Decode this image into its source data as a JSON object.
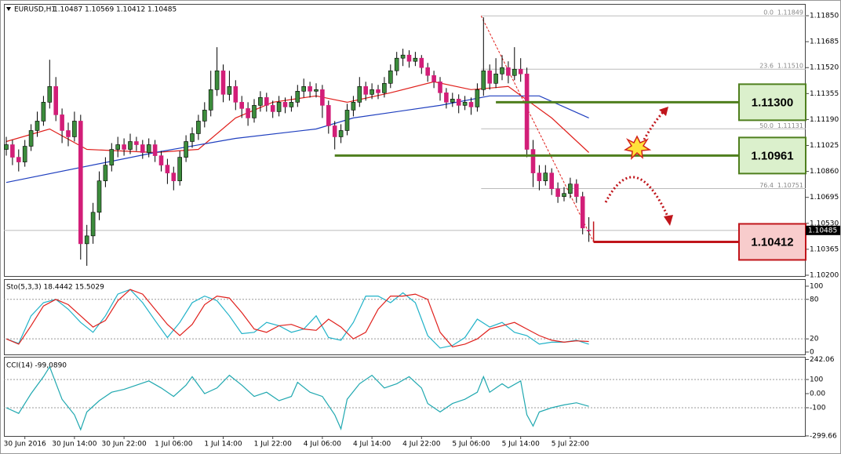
{
  "chart_data": [
    {
      "type": "candlestick",
      "title": "EURUSD,H1",
      "header_ohlc": [
        1.10487,
        1.10569,
        1.10412,
        1.10485
      ],
      "up_color": "#3c8c3c",
      "down_color": "#d21e78",
      "ylim": [
        1.10195,
        1.11925
      ],
      "yticks": [
        {
          "value": 1.1185,
          "label": "1.11850"
        },
        1.11685,
        {
          "value": 1.1152,
          "label": "1.11520"
        },
        1.11355,
        {
          "value": 1.1119,
          "label": "1.11190"
        },
        1.11025,
        {
          "value": 1.1086,
          "label": "1.10860"
        },
        1.10695,
        {
          "value": 1.1053,
          "label": "1.10530"
        },
        1.10365,
        {
          "value": 1.102,
          "label": "1.10200"
        }
      ],
      "current_price": 1.10485,
      "categories": [
        null,
        null,
        null,
        "30 Jun 2016",
        null,
        null,
        null,
        null,
        null,
        null,
        null,
        "30 Jun 14:00",
        null,
        null,
        null,
        null,
        null,
        null,
        null,
        "30 Jun 22:00",
        null,
        null,
        null,
        null,
        null,
        null,
        null,
        "1 Jul 06:00",
        null,
        null,
        null,
        null,
        null,
        null,
        null,
        "1 Jul 14:00",
        null,
        null,
        null,
        null,
        null,
        null,
        null,
        "1 Jul 22:00",
        null,
        null,
        null,
        null,
        null,
        null,
        null,
        "4 Jul 06:00",
        null,
        null,
        null,
        null,
        null,
        null,
        null,
        "4 Jul 14:00",
        null,
        null,
        null,
        null,
        null,
        null,
        null,
        "4 Jul 22:00",
        null,
        null,
        null,
        null,
        null,
        null,
        null,
        "5 Jul 06:00",
        null,
        null,
        null,
        null,
        null,
        null,
        null,
        "5 Jul 14:00",
        null,
        null,
        null,
        null,
        null,
        null,
        null,
        "5 Jul 22:00",
        null,
        null,
        null
      ],
      "ohlc": [
        [
          1.11,
          1.1108,
          1.1096,
          1.1103
        ],
        [
          1.1103,
          1.1106,
          1.109,
          1.1095
        ],
        [
          1.1095,
          1.11,
          1.1086,
          1.1092
        ],
        [
          1.1092,
          1.1106,
          1.1089,
          1.1102
        ],
        [
          1.1102,
          1.1116,
          1.1099,
          1.1112
        ],
        [
          1.1112,
          1.1124,
          1.1108,
          1.1118
        ],
        [
          1.1118,
          1.1134,
          1.1115,
          1.113
        ],
        [
          1.113,
          1.1157,
          1.1126,
          1.114
        ],
        [
          1.114,
          1.1146,
          1.1118,
          1.1122
        ],
        [
          1.1122,
          1.1126,
          1.1104,
          1.1112
        ],
        [
          1.1112,
          1.1117,
          1.1102,
          1.1108
        ],
        [
          1.1108,
          1.1124,
          1.1105,
          1.1118
        ],
        [
          1.1118,
          1.1122,
          1.103,
          1.104
        ],
        [
          1.104,
          1.1052,
          1.1026,
          1.1045
        ],
        [
          1.1045,
          1.1066,
          1.104,
          1.106
        ],
        [
          1.106,
          1.1086,
          1.1055,
          1.108
        ],
        [
          1.108,
          1.1095,
          1.1076,
          1.109
        ],
        [
          1.109,
          1.1104,
          1.1086,
          1.11
        ],
        [
          1.11,
          1.1108,
          1.1095,
          1.1103
        ],
        [
          1.1103,
          1.1107,
          1.1096,
          1.11
        ],
        [
          1.11,
          1.111,
          1.1097,
          1.1105
        ],
        [
          1.1105,
          1.1108,
          1.1099,
          1.1103
        ],
        [
          1.1103,
          1.1106,
          1.1094,
          1.1098
        ],
        [
          1.1098,
          1.1107,
          1.1095,
          1.1103
        ],
        [
          1.1103,
          1.1106,
          1.1092,
          1.1096
        ],
        [
          1.1096,
          1.1099,
          1.1086,
          1.109
        ],
        [
          1.109,
          1.1094,
          1.1078,
          1.1085
        ],
        [
          1.1085,
          1.1089,
          1.1074,
          1.108
        ],
        [
          1.108,
          1.1099,
          1.1077,
          1.1095
        ],
        [
          1.1095,
          1.1109,
          1.1092,
          1.1105
        ],
        [
          1.1105,
          1.1114,
          1.1101,
          1.111
        ],
        [
          1.111,
          1.1122,
          1.1106,
          1.1118
        ],
        [
          1.1118,
          1.113,
          1.1114,
          1.1125
        ],
        [
          1.1125,
          1.115,
          1.1121,
          1.1138
        ],
        [
          1.1138,
          1.1165,
          1.1134,
          1.115
        ],
        [
          1.115,
          1.1154,
          1.113,
          1.1135
        ],
        [
          1.1135,
          1.115,
          1.1131,
          1.114
        ],
        [
          1.114,
          1.1144,
          1.1125,
          1.113
        ],
        [
          1.113,
          1.1134,
          1.112,
          1.1126
        ],
        [
          1.1126,
          1.113,
          1.1115,
          1.112
        ],
        [
          1.112,
          1.1132,
          1.1117,
          1.1128
        ],
        [
          1.1128,
          1.1137,
          1.1124,
          1.1133
        ],
        [
          1.1133,
          1.1136,
          1.1124,
          1.1128
        ],
        [
          1.1128,
          1.1131,
          1.112,
          1.1124
        ],
        [
          1.1124,
          1.1134,
          1.1121,
          1.113
        ],
        [
          1.113,
          1.1133,
          1.1123,
          1.1127
        ],
        [
          1.1127,
          1.1134,
          1.1124,
          1.113
        ],
        [
          1.113,
          1.1141,
          1.1127,
          1.1137
        ],
        [
          1.1137,
          1.1145,
          1.1133,
          1.114
        ],
        [
          1.114,
          1.1143,
          1.1133,
          1.1137
        ],
        [
          1.1137,
          1.1142,
          1.1133,
          1.1138
        ],
        [
          1.1138,
          1.1141,
          1.112,
          1.1128
        ],
        [
          1.1128,
          1.1131,
          1.111,
          1.1115
        ],
        [
          1.1115,
          1.1118,
          1.11,
          1.1108
        ],
        [
          1.1108,
          1.1116,
          1.1104,
          1.1112
        ],
        [
          1.1112,
          1.1129,
          1.1109,
          1.1125
        ],
        [
          1.1125,
          1.1134,
          1.1121,
          1.113
        ],
        [
          1.113,
          1.1146,
          1.1127,
          1.114
        ],
        [
          1.114,
          1.1143,
          1.1131,
          1.1135
        ],
        [
          1.1135,
          1.1142,
          1.1132,
          1.1138
        ],
        [
          1.1138,
          1.1141,
          1.1132,
          1.1136
        ],
        [
          1.1136,
          1.1146,
          1.1133,
          1.1142
        ],
        [
          1.1142,
          1.1154,
          1.1139,
          1.115
        ],
        [
          1.115,
          1.1162,
          1.1147,
          1.1158
        ],
        [
          1.1158,
          1.1164,
          1.1153,
          1.116
        ],
        [
          1.116,
          1.1163,
          1.1152,
          1.1156
        ],
        [
          1.1156,
          1.1162,
          1.1153,
          1.1158
        ],
        [
          1.1158,
          1.116,
          1.1148,
          1.1152
        ],
        [
          1.1152,
          1.1155,
          1.1143,
          1.1147
        ],
        [
          1.1147,
          1.115,
          1.1139,
          1.1143
        ],
        [
          1.1143,
          1.1146,
          1.1131,
          1.1136
        ],
        [
          1.1136,
          1.1139,
          1.1126,
          1.113
        ],
        [
          1.113,
          1.1136,
          1.1127,
          1.1132
        ],
        [
          1.1132,
          1.1135,
          1.1123,
          1.1128
        ],
        [
          1.1128,
          1.1134,
          1.1125,
          1.113
        ],
        [
          1.113,
          1.1133,
          1.1122,
          1.1127
        ],
        [
          1.1127,
          1.1142,
          1.1124,
          1.1138
        ],
        [
          1.1138,
          1.1184,
          1.1134,
          1.115
        ],
        [
          1.115,
          1.1154,
          1.1138,
          1.1142
        ],
        [
          1.1142,
          1.1158,
          1.1139,
          1.1148
        ],
        [
          1.1148,
          1.116,
          1.1144,
          1.1152
        ],
        [
          1.1152,
          1.1156,
          1.1142,
          1.1147
        ],
        [
          1.1147,
          1.1165,
          1.1144,
          1.1151
        ],
        [
          1.1151,
          1.1158,
          1.1143,
          1.1148
        ],
        [
          1.1148,
          1.1152,
          1.1095,
          1.11
        ],
        [
          1.11,
          1.1106,
          1.1076,
          1.1085
        ],
        [
          1.1085,
          1.109,
          1.1074,
          1.108
        ],
        [
          1.108,
          1.109,
          1.1077,
          1.1085
        ],
        [
          1.1085,
          1.1088,
          1.1071,
          1.1075
        ],
        [
          1.1075,
          1.1079,
          1.1066,
          1.107
        ],
        [
          1.107,
          1.1076,
          1.1067,
          1.1072
        ],
        [
          1.1072,
          1.1082,
          1.1069,
          1.1078
        ],
        [
          1.1078,
          1.1081,
          1.1066,
          1.107
        ],
        [
          1.107,
          1.1073,
          1.1046,
          1.105
        ],
        [
          1.10487,
          1.10569,
          1.10412,
          1.10485
        ]
      ],
      "series": [
        {
          "color": "#e0201c",
          "x": [
            0,
            7,
            13,
            24,
            31,
            37,
            43,
            50,
            55,
            62,
            69,
            75,
            81,
            88,
            94
          ],
          "values": [
            1.1105,
            1.1113,
            1.11,
            1.1098,
            1.11,
            1.112,
            1.113,
            1.1134,
            1.113,
            1.1136,
            1.1143,
            1.1138,
            1.114,
            1.112,
            1.1098
          ]
        },
        {
          "color": "#1f3fbf",
          "x": [
            0,
            24,
            37,
            50,
            56,
            70,
            78,
            86,
            94
          ],
          "values": [
            1.1079,
            1.1098,
            1.1107,
            1.1113,
            1.112,
            1.1128,
            1.1134,
            1.1134,
            1.112
          ]
        }
      ],
      "fibonacci": [
        {
          "ratio": "0.0",
          "price": 1.11849
        },
        {
          "ratio": "23.6",
          "price": {
            "value": 1.1151,
            "label": "1.11510"
          }
        },
        {
          "ratio": "50.0",
          "price": 1.11131
        },
        {
          "ratio": "76.4",
          "price": 1.10751
        }
      ],
      "levels": [
        {
          "value": 1.113,
          "label": "1.11300",
          "color": "#4f7f1e",
          "fill": "#dbf0cc"
        },
        {
          "value": 1.10961,
          "color": "#4f7f1e",
          "fill": "#dbf0cc"
        },
        {
          "value": 1.10412,
          "color": "#c0151b",
          "fill": "#f8cccc"
        }
      ]
    },
    {
      "type": "line",
      "title": "Sto(5,3,3) 18.4442 15.5029",
      "ylim": [
        -3.6,
        109.5
      ],
      "yticks": [
        100,
        80,
        20,
        0
      ],
      "levels": [
        80,
        20
      ],
      "series": [
        {
          "color": "#20b2c8",
          "x": [
            0,
            2,
            4,
            6,
            8,
            10,
            12,
            14,
            16,
            18,
            20,
            22,
            24,
            26,
            28,
            30,
            32,
            34,
            36,
            38,
            40,
            42,
            44,
            46,
            48,
            50,
            52,
            54,
            56,
            58,
            60,
            62,
            64,
            66,
            68,
            70,
            72,
            74,
            76,
            78,
            80,
            82,
            84,
            86,
            88,
            90,
            92,
            94
          ],
          "values": [
            20,
            13,
            55,
            75,
            80,
            65,
            45,
            30,
            55,
            88,
            95,
            75,
            48,
            22,
            45,
            75,
            85,
            78,
            55,
            28,
            30,
            45,
            40,
            30,
            35,
            55,
            22,
            18,
            45,
            85,
            85,
            75,
            90,
            75,
            25,
            6,
            10,
            22,
            50,
            38,
            45,
            30,
            25,
            12,
            15,
            15,
            18,
            12
          ]
        },
        {
          "color": "#e0201c",
          "x": [
            0,
            2,
            4,
            6,
            8,
            10,
            12,
            14,
            16,
            18,
            20,
            22,
            24,
            26,
            28,
            30,
            32,
            34,
            36,
            38,
            40,
            42,
            44,
            46,
            48,
            50,
            52,
            54,
            56,
            58,
            60,
            62,
            64,
            66,
            68,
            70,
            72,
            74,
            76,
            78,
            80,
            82,
            84,
            86,
            88,
            90,
            92,
            94
          ],
          "values": [
            20,
            12,
            40,
            70,
            80,
            72,
            55,
            38,
            48,
            78,
            95,
            88,
            65,
            42,
            25,
            42,
            72,
            85,
            82,
            60,
            35,
            30,
            40,
            42,
            35,
            33,
            50,
            38,
            20,
            30,
            65,
            85,
            85,
            88,
            80,
            30,
            8,
            12,
            20,
            35,
            40,
            45,
            35,
            25,
            18,
            15,
            17,
            16
          ]
        }
      ]
    },
    {
      "type": "line",
      "title": "CCI(14) -99,0890",
      "ylim": [
        -300,
        261
      ],
      "yticks": [
        242.06,
        100,
        {
          "value": 0,
          "label": "0.00"
        },
        -100,
        -299.66
      ],
      "levels": [
        100,
        -100
      ],
      "series": [
        {
          "color": "#20a8b0",
          "x": [
            0,
            2,
            4,
            6,
            7,
            9,
            11,
            12,
            13,
            15,
            17,
            19,
            21,
            23,
            25,
            27,
            29,
            30,
            32,
            34,
            36,
            38,
            40,
            42,
            44,
            46,
            47,
            49,
            51,
            53,
            54,
            55,
            57,
            59,
            61,
            63,
            65,
            67,
            68,
            70,
            72,
            74,
            76,
            77,
            78,
            80,
            81,
            83,
            84,
            85,
            86,
            88,
            90,
            92,
            94
          ],
          "values": [
            -100,
            -140,
            0,
            120,
            190,
            -40,
            -150,
            -255,
            -130,
            -50,
            10,
            30,
            60,
            90,
            40,
            -20,
            60,
            120,
            0,
            40,
            130,
            60,
            -20,
            10,
            -50,
            -20,
            80,
            10,
            -20,
            -150,
            -250,
            -40,
            70,
            130,
            40,
            70,
            120,
            40,
            -70,
            -130,
            -70,
            -40,
            10,
            120,
            10,
            70,
            40,
            90,
            -150,
            -230,
            -130,
            -100,
            -80,
            -65,
            -90
          ]
        }
      ]
    }
  ]
}
